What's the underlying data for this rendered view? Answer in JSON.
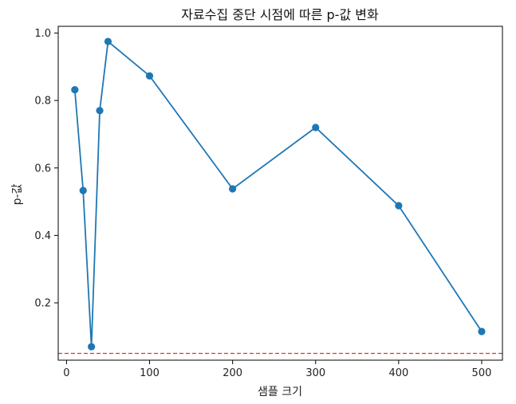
{
  "chart_data": {
    "type": "line",
    "title": "자료수집 중단 시점에 따른 p-값 변화",
    "xlabel": "샘플 크기",
    "ylabel": "p-값",
    "xlim": [
      -10,
      525
    ],
    "ylim": [
      0.03,
      1.02
    ],
    "x_ticks": [
      0,
      100,
      200,
      300,
      400,
      500
    ],
    "y_ticks": [
      0.2,
      0.4,
      0.6,
      0.8,
      1.0
    ],
    "x_tick_labels": [
      "0",
      "100",
      "200",
      "300",
      "400",
      "500"
    ],
    "y_tick_labels": [
      "0.2",
      "0.4",
      "0.6",
      "0.8",
      "1.0"
    ],
    "grid": false,
    "series": [
      {
        "x": [
          10,
          20,
          30,
          40,
          50,
          100,
          200,
          300,
          400,
          500
        ],
        "y": [
          0.832,
          0.533,
          0.07,
          0.77,
          0.975,
          0.873,
          0.538,
          0.72,
          0.488,
          0.115
        ],
        "color": "#1f77b4",
        "marker": "circle"
      }
    ],
    "reference_line": {
      "y": 0.05,
      "color": "#e8302a",
      "style": "dashed"
    }
  }
}
